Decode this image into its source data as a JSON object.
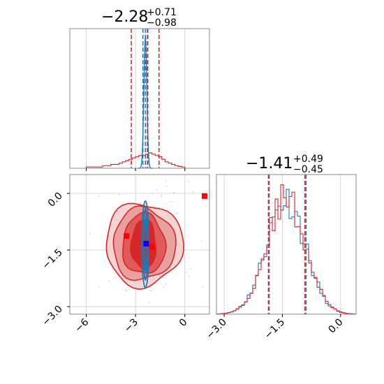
{
  "chart_data": {
    "type": "corner",
    "colors": {
      "red": "#d62728",
      "blue": "#1f77b4",
      "grid": "#cccccc",
      "marker_blue": "#0000ff",
      "marker_red": "#ff0000"
    },
    "grid": true,
    "panels": [
      {
        "id": "hist_param1",
        "type": "histogram",
        "title_value": "−2.28",
        "title_upper": "+0.71",
        "title_lower": "−0.98",
        "xlim": [
          -7.0,
          1.5
        ],
        "grid_x": [
          -6,
          -3,
          0
        ],
        "series": [
          {
            "name": "",
            "color": "red",
            "bin_edges": [
              -6.0,
              -5.5,
              -5.0,
              -4.5,
              -4.0,
              -3.8,
              -3.6,
              -3.4,
              -3.2,
              -3.0,
              -2.8,
              -2.6,
              -2.4,
              -2.2,
              -2.0,
              -1.8,
              -1.6,
              -1.4,
              -1.2,
              -1.0,
              -0.8,
              -0.6,
              -0.4,
              -0.2,
              0.0
            ],
            "counts": [
              0.01,
              0.01,
              0.02,
              0.03,
              0.04,
              0.05,
              0.06,
              0.07,
              0.08,
              0.09,
              0.1,
              0.1,
              0.11,
              0.12,
              0.11,
              0.1,
              0.09,
              0.07,
              0.05,
              0.04,
              0.03,
              0.02,
              0.015,
              0.01
            ],
            "quantile_lines": [
              -3.26,
              -2.28,
              -1.57
            ]
          },
          {
            "name": "",
            "color": "blue",
            "peak_center": -2.4,
            "peak_width": 0.09,
            "quantile_lines": [
              -2.55,
              -2.4,
              -2.25
            ]
          }
        ]
      },
      {
        "id": "hist_param2",
        "type": "histogram",
        "title_value": "−1.41",
        "title_upper": "+0.49",
        "title_lower": "−0.45",
        "xlim": [
          -3.2,
          0.4
        ],
        "xticks": [
          "−3.0",
          "−1.5",
          "0.0"
        ],
        "xtick_values": [
          -3.0,
          -1.5,
          0.0
        ],
        "series": [
          {
            "name": "",
            "color": "red",
            "quantile_lines": [
              -1.86,
              -0.92
            ]
          },
          {
            "name": "",
            "color": "blue",
            "quantile_lines": [
              -1.84,
              -0.89
            ]
          }
        ]
      },
      {
        "id": "scatter_2d",
        "type": "contour",
        "xlim": [
          -7.0,
          1.5
        ],
        "ylim": [
          -3.2,
          0.5
        ],
        "xticks": [
          "−6",
          "−3",
          "0"
        ],
        "xtick_values": [
          -6,
          -3,
          0
        ],
        "yticks": [
          "0.0",
          "−1.5",
          "−3.0"
        ],
        "ytick_values": [
          0.0,
          -1.5,
          -3.0
        ],
        "markers": [
          {
            "color": "marker_blue",
            "x": -2.35,
            "y": -1.33
          },
          {
            "color": "marker_red",
            "x": -3.55,
            "y": -1.13
          },
          {
            "color": "marker_red",
            "x": -2.0,
            "y": -1.42
          },
          {
            "color": "marker_red",
            "x": 1.2,
            "y": -0.07
          }
        ]
      }
    ]
  }
}
